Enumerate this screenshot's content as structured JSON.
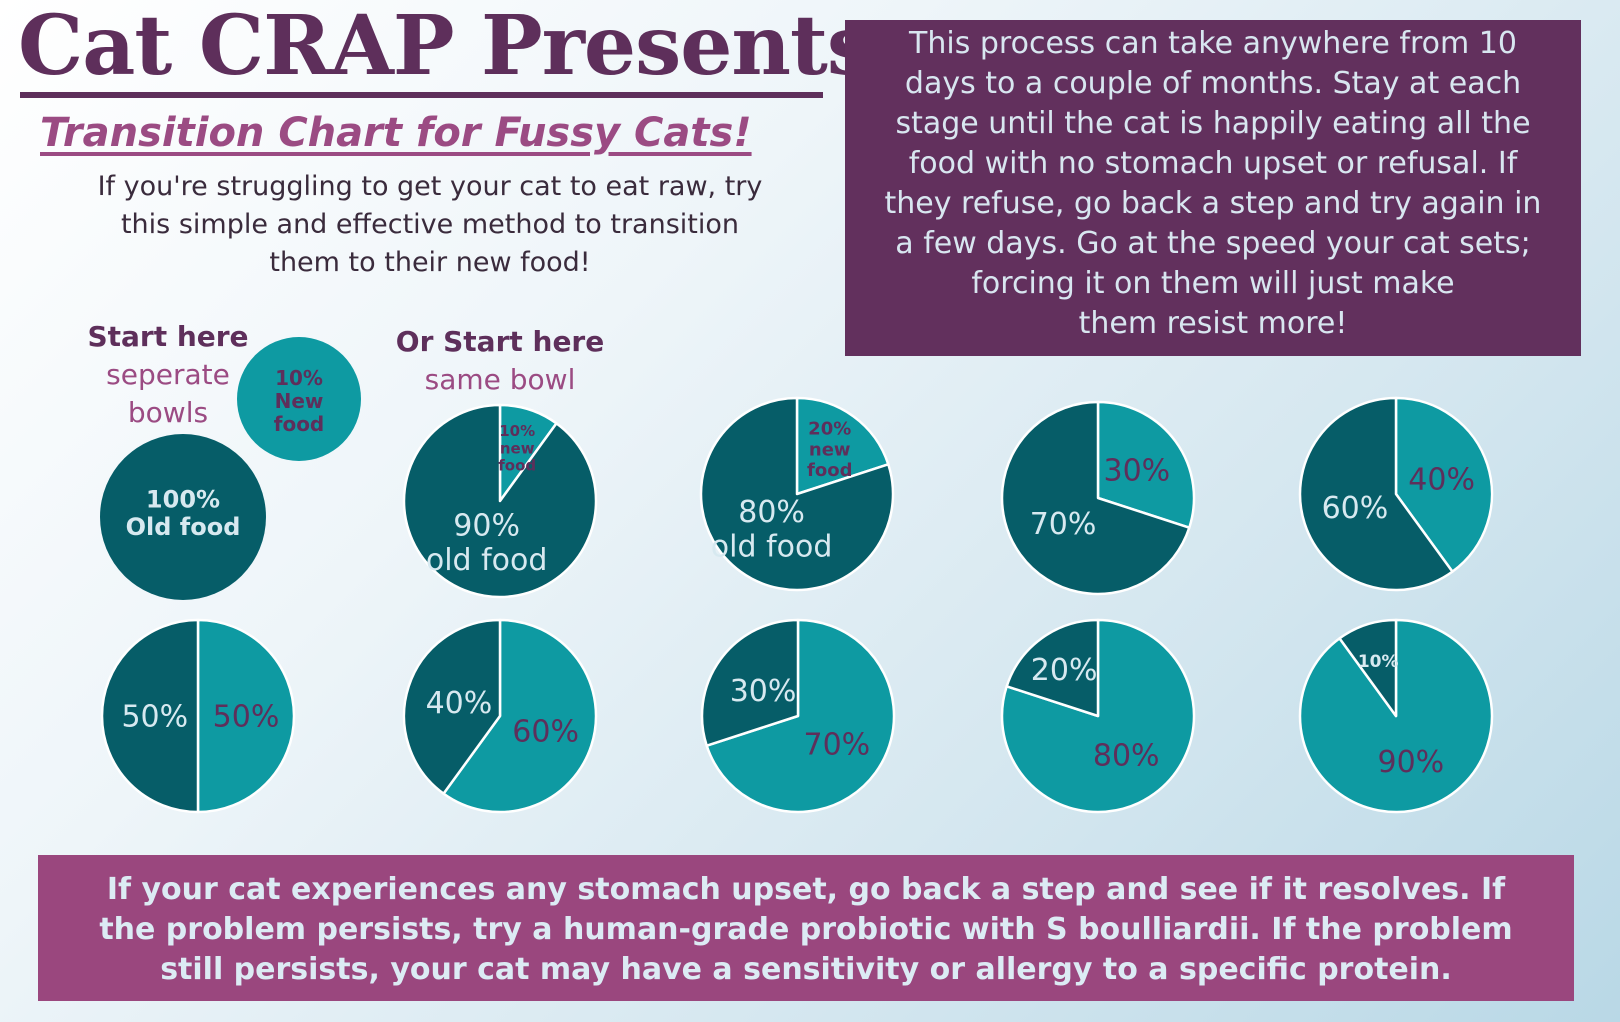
{
  "header": {
    "title": "Cat CRAP Presents:",
    "subtitle": "Transition Chart for Fussy Cats!",
    "intro_line1": "If you're struggling to get your cat to eat raw, try",
    "intro_line2": "this simple and effective method to transition",
    "intro_line3": "them to their new food!"
  },
  "note": {
    "line1": "This process can take anywhere from 10",
    "line2": "days to a couple of months. Stay at each",
    "line3": "stage until the cat is happily eating all the",
    "line4": "food with no stomach upset or refusal. If",
    "line5": "they refuse, go back a step and try again in",
    "line6": "a few days. Go at the speed your cat sets;",
    "line7": "forcing it on them will just make",
    "line8": "them resist more!"
  },
  "start_separate": {
    "heading": "Start here",
    "line1": "seperate",
    "line2": "bowls"
  },
  "start_same": {
    "heading": "Or Start here",
    "line1": "same bowl"
  },
  "warning": {
    "line1": "If your cat experiences any stomach upset, go back a step and see if it resolves. If",
    "line2": "the problem persists, try a human-grade probiotic with S boulliardii. If the problem",
    "line3": "still persists, your cat may have a sensitivity or allergy to a specific protein."
  },
  "colors": {
    "old_food": "#065d68",
    "new_food": "#0e9aa2",
    "border": "#ffffff",
    "dark_label": "#d7e9f0",
    "light_label": "#5e2f5b"
  },
  "chart_data": {
    "type": "pie",
    "title": "Transition Chart for Fussy Cats!",
    "separate_bowls": [
      {
        "name": "old food bowl",
        "label": "100% Old food",
        "value": 100
      },
      {
        "name": "new food bowl",
        "label": "10% New food",
        "value": 10
      }
    ],
    "series": [
      {
        "new": 10,
        "old": 90,
        "new_label": "10% new food",
        "old_label": "90% old food"
      },
      {
        "new": 20,
        "old": 80,
        "new_label": "20% new food",
        "old_label": "80% old food"
      },
      {
        "new": 30,
        "old": 70,
        "new_label": "30%",
        "old_label": "70%"
      },
      {
        "new": 40,
        "old": 60,
        "new_label": "40%",
        "old_label": "60%"
      },
      {
        "new": 50,
        "old": 50,
        "new_label": "50%",
        "old_label": "50%"
      },
      {
        "new": 60,
        "old": 40,
        "new_label": "60%",
        "old_label": "40%"
      },
      {
        "new": 70,
        "old": 30,
        "new_label": "70%",
        "old_label": "30%"
      },
      {
        "new": 80,
        "old": 20,
        "new_label": "80%",
        "old_label": "20%"
      },
      {
        "new": 90,
        "old": 10,
        "new_label": "90%",
        "old_label": "10%"
      }
    ]
  }
}
